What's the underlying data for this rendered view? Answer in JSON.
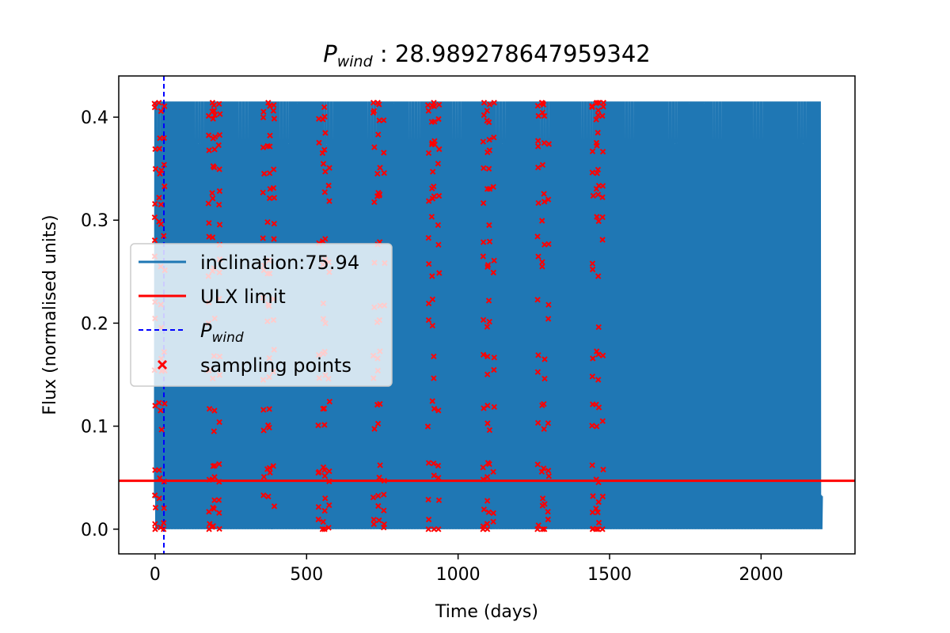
{
  "chart_data": {
    "type": "line",
    "title_main": "P",
    "title_sub": "wind",
    "title_value": " : 28.989278647959342",
    "xlabel": "Time (days)",
    "ylabel": "Flux (normalised units)",
    "xlim": [
      -120,
      2310
    ],
    "ylim": [
      -0.024,
      0.44
    ],
    "x_ticks": [
      0,
      500,
      1000,
      1500,
      2000
    ],
    "y_ticks": [
      0.0,
      0.1,
      0.2,
      0.3,
      0.4
    ],
    "x_tick_labels": [
      "0",
      "500",
      "1000",
      "1500",
      "2000"
    ],
    "y_tick_labels": [
      "0.0",
      "0.1",
      "0.2",
      "0.3",
      "0.4"
    ],
    "grid": false,
    "legend_position": "center-left",
    "series": [
      {
        "name": "inclination:75.94",
        "kind": "line",
        "color": "#1f77b4",
        "t_start": 0,
        "t_end": 2200,
        "peak_period_days": 9.65,
        "peak_flux": 0.414,
        "trough_flux": 0.0,
        "plateau_flux": 0.032,
        "plateau_period_days": 180
      },
      {
        "name": "ULX limit",
        "kind": "hline",
        "color": "#ff0000",
        "y": 0.047
      },
      {
        "name": "P",
        "name_sub": "wind",
        "kind": "vline",
        "color": "#0000ff",
        "style": "dashed",
        "x": 28.989278647959342
      },
      {
        "name": "sampling points",
        "kind": "scatter",
        "marker": "x",
        "color": "#ff0000",
        "clusters": [
          {
            "x_center": 17,
            "x_range": [
              0,
              30
            ],
            "y_min": 0.0,
            "y_max": 0.414
          },
          {
            "x_center": 193,
            "x_range": [
              178,
              212
            ],
            "y_min": 0.0,
            "y_max": 0.414
          },
          {
            "x_center": 375,
            "x_range": [
              358,
              392
            ],
            "y_min": 0.0,
            "y_max": 0.414
          },
          {
            "x_center": 557,
            "x_range": [
              540,
              574
            ],
            "y_min": 0.0,
            "y_max": 0.414
          },
          {
            "x_center": 738,
            "x_range": [
              722,
              756
            ],
            "y_min": 0.0,
            "y_max": 0.414
          },
          {
            "x_center": 918,
            "x_range": [
              902,
              936
            ],
            "y_min": 0.0,
            "y_max": 0.414
          },
          {
            "x_center": 1100,
            "x_range": [
              1084,
              1118
            ],
            "y_min": 0.0,
            "y_max": 0.414
          },
          {
            "x_center": 1281,
            "x_range": [
              1264,
              1298
            ],
            "y_min": 0.0,
            "y_max": 0.414
          },
          {
            "x_center": 1460,
            "x_range": [
              1444,
              1478
            ],
            "y_min": 0.0,
            "y_max": 0.414
          }
        ]
      }
    ],
    "legend": {
      "entries": [
        {
          "label": "inclination:75.94",
          "sub": ""
        },
        {
          "label": "ULX limit",
          "sub": ""
        },
        {
          "label": "P",
          "sub": "wind"
        },
        {
          "label": "sampling points",
          "sub": ""
        }
      ]
    }
  }
}
